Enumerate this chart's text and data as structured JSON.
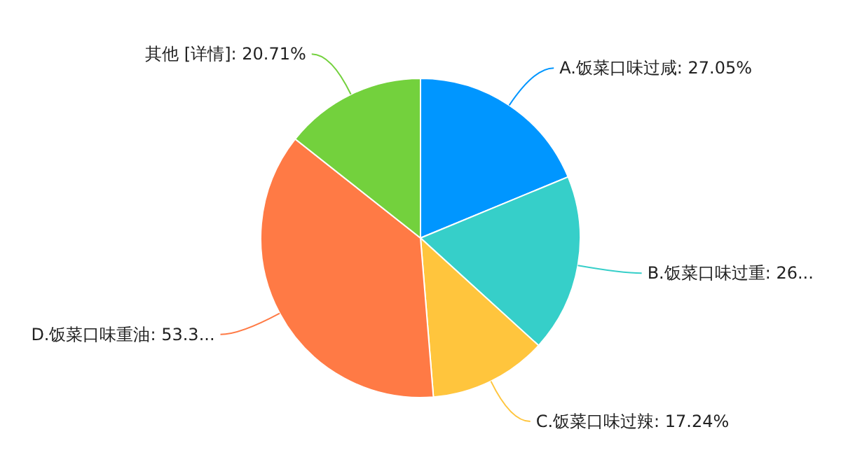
{
  "chart_data": {
    "type": "pie",
    "categories": [
      "A.饭菜口味过咸",
      "B.饭菜口味过重",
      "C.饭菜口味过辣",
      "D.饭菜口味重油",
      "其他  [详情]"
    ],
    "values": [
      27.05,
      26.0,
      17.24,
      53.3,
      20.71
    ],
    "value_labels": [
      "27.05%",
      "26...",
      "17.24%",
      "53.3...",
      "20.71%"
    ],
    "colors": [
      "#0096ff",
      "#36cfc9",
      "#ffc53d",
      "#ff7a45",
      "#73d13d"
    ]
  }
}
